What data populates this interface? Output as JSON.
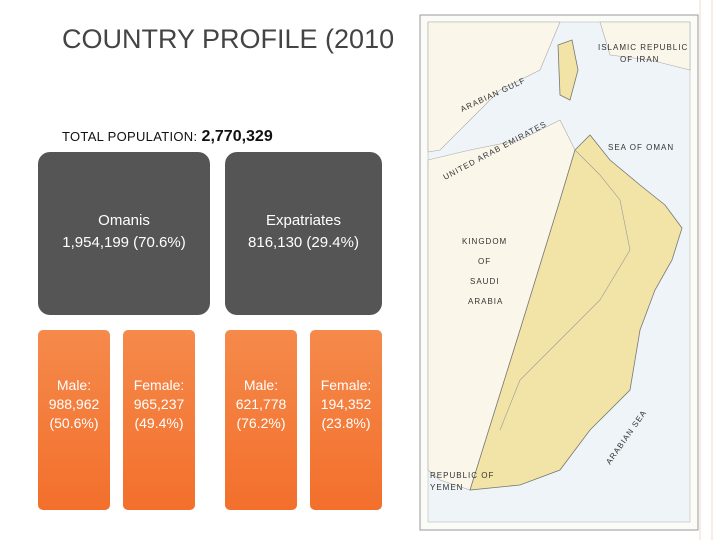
{
  "title": "COUNTRY PROFILE (2010",
  "population": {
    "label": "TOTAL POPULATION:",
    "value": "2,770,329"
  },
  "groups": [
    {
      "name": "Omanis",
      "total": "1,954,199  (70.6%)",
      "breakdown": [
        {
          "label": "Male:",
          "value": "988,962",
          "share": "(50.6%)"
        },
        {
          "label": "Female:",
          "value": "965,237",
          "share": "(49.4%)"
        }
      ]
    },
    {
      "name": "Expatriates",
      "total": "816,130  (29.4%)",
      "breakdown": [
        {
          "label": "Male:",
          "value": "621,778",
          "share": "(76.2%)"
        },
        {
          "label": "Female:",
          "value": "194,352",
          "share": "(23.8%)"
        }
      ]
    }
  ],
  "map": {
    "labels": [
      "ISLAMIC REPUBLIC",
      "OF IRAN",
      "ARABIAN GULF",
      "SEA OF OMAN",
      "UNITED ARAB EMIRATES",
      "KINGDOM",
      "OF",
      "SAUDI",
      "ARABIA",
      "ARABIAN SEA",
      "REPUBLIC OF",
      "YEMEN"
    ]
  }
}
